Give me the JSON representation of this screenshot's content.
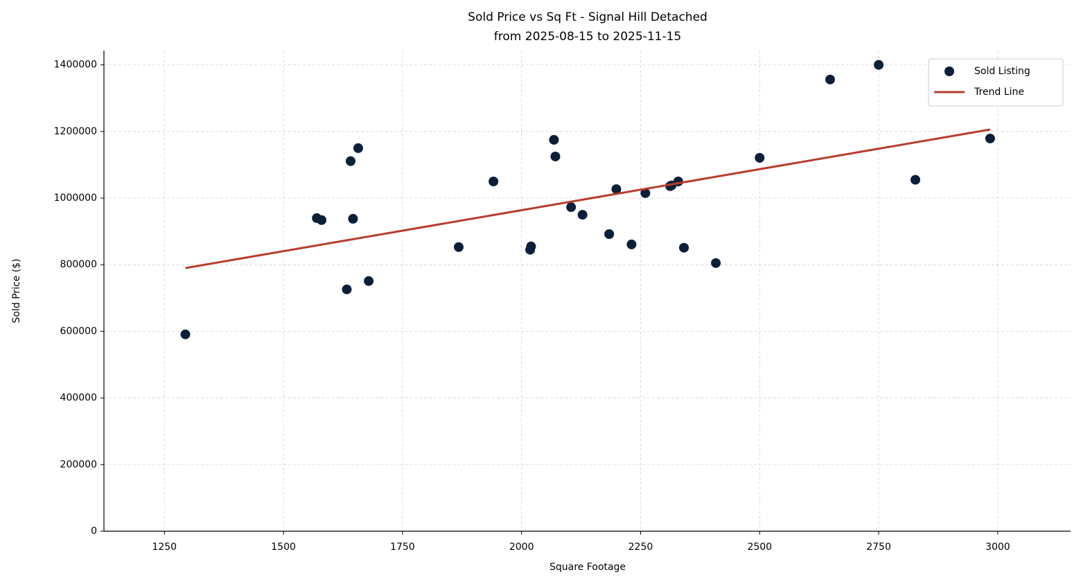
{
  "chart_data": {
    "type": "scatter",
    "title": "Sold Price vs Sq Ft - Signal Hill Detached",
    "subtitle": "from 2025-08-15 to 2025-11-15",
    "x_label": "Square Footage",
    "y_label": "Sold Price ($)",
    "xlim": [
      1123,
      3153
    ],
    "ylim": [
      0,
      1443000
    ],
    "xticks": [
      1250,
      1500,
      1750,
      2000,
      2250,
      2500,
      2750,
      3000
    ],
    "yticks": [
      0,
      200000,
      400000,
      600000,
      800000,
      1000000,
      1200000,
      1400000
    ],
    "grid": true,
    "legend": "upper right",
    "series": [
      {
        "name": "Sold Listing",
        "color": "#0b1f3a",
        "x": [
          1294,
          1570,
          1580,
          1633,
          1641,
          1646,
          1657,
          1679,
          1868,
          1941,
          2018,
          2020,
          2068,
          2071,
          2104,
          2128,
          2184,
          2199,
          2231,
          2260,
          2312,
          2315,
          2329,
          2341,
          2408,
          2500,
          2648,
          2750,
          2827,
          2984
        ],
        "values": [
          591000,
          940000,
          934000,
          726000,
          1111000,
          938000,
          1150000,
          751000,
          853000,
          1050000,
          845000,
          855000,
          1175000,
          1125000,
          973000,
          950000,
          892000,
          1027000,
          861000,
          1015000,
          1036000,
          1038000,
          1050000,
          851000,
          805000,
          1121000,
          1356000,
          1400000,
          1055000,
          1179000
        ]
      },
      {
        "name": "Trend Line",
        "color": "#b83c2c",
        "kind": "line",
        "x": [
          1294,
          2984
        ],
        "values": [
          790000,
          1206000
        ]
      }
    ]
  }
}
